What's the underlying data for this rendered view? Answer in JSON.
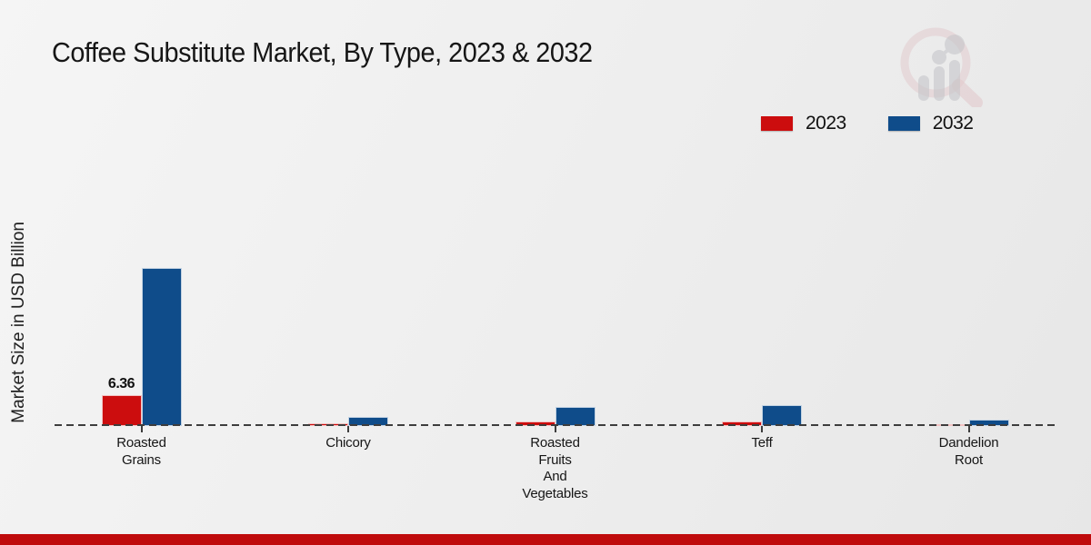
{
  "title": "Coffee Substitute Market, By Type, 2023 & 2032",
  "ylabel": "Market Size in USD Billion",
  "legend": [
    {
      "label": "2023",
      "color": "#cc0d0e"
    },
    {
      "label": "2032",
      "color": "#0f4c8a"
    }
  ],
  "colors": {
    "series_2023": "#cc0d0e",
    "series_2032": "#0f4c8a",
    "baseline_dash": "#3d3d3d",
    "bottom_strip": "#bf0b0c"
  },
  "branding": {
    "logo": "market-research-future-watermark"
  },
  "chart_data": {
    "type": "bar",
    "title": "Coffee Substitute Market, By Type, 2023 & 2032",
    "xlabel": "",
    "ylabel": "Market Size in USD Billion",
    "categories": [
      "Roasted\nGrains",
      "Chicory",
      "Roasted\nFruits\nAnd\nVegetables",
      "Teff",
      "Dandelion\nRoot"
    ],
    "series": [
      {
        "name": "2023",
        "color": "#cc0d0e",
        "values": [
          6.36,
          0.6,
          1.0,
          0.95,
          0.35
        ]
      },
      {
        "name": "2032",
        "color": "#0f4c8a",
        "values": [
          32.5,
          1.9,
          4.0,
          4.3,
          1.4
        ]
      }
    ],
    "visible_value_labels": [
      {
        "category_index": 0,
        "series": "2023",
        "label": "6.36"
      }
    ],
    "ylim": [
      0,
      36
    ],
    "grid": false,
    "axis_ticks_shown": false,
    "baseline_style": "dashed",
    "legend_position": "top-right"
  }
}
